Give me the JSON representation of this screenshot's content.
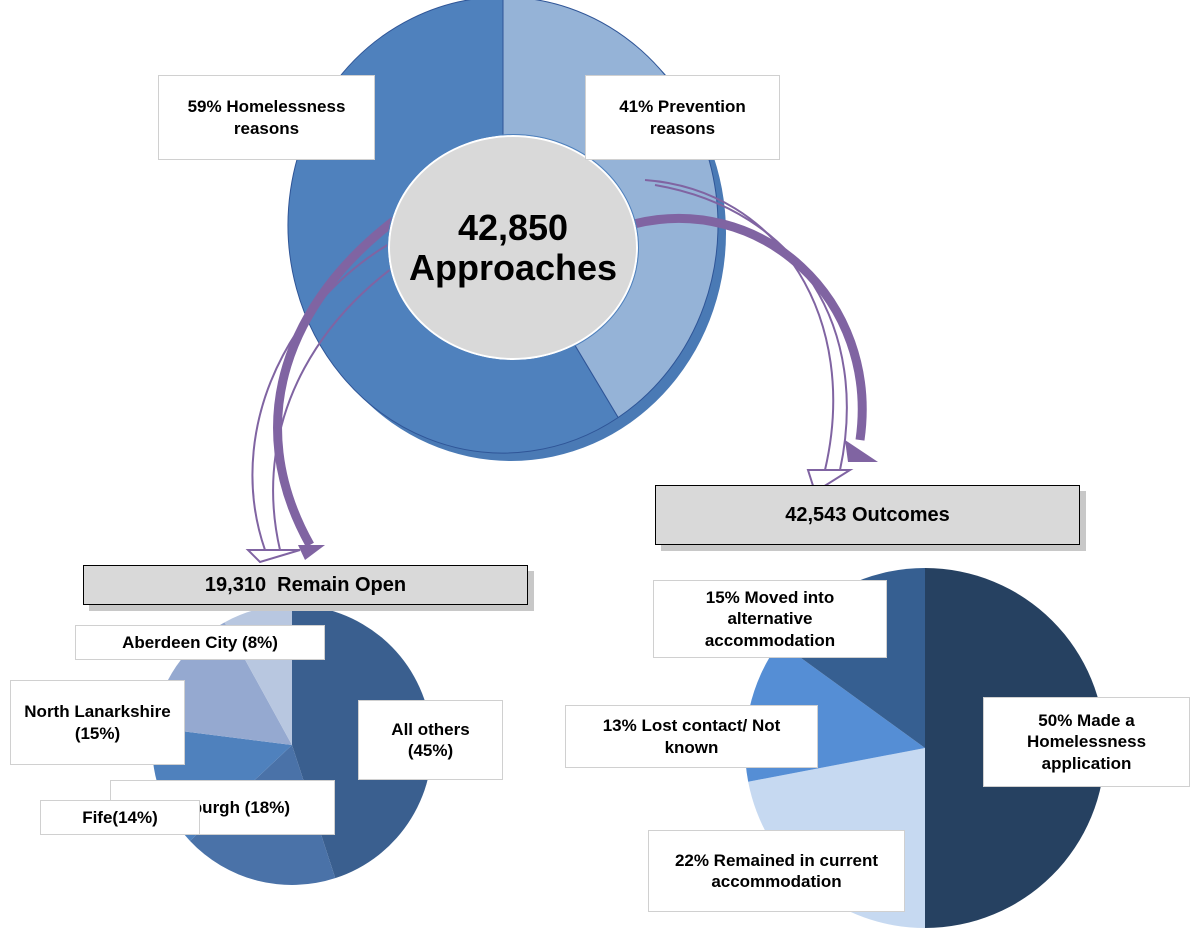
{
  "chart_data": [
    {
      "type": "pie",
      "donut": true,
      "total_label": "42,850 Approaches",
      "values": [
        59,
        41
      ],
      "value_labels": [
        "59% Homelessness reasons",
        "41% Prevention reasons"
      ],
      "colors": [
        "#4f81bd",
        "#95b3d7"
      ]
    },
    {
      "type": "pie",
      "title": "19,310  Remain Open",
      "values": [
        45,
        18,
        14,
        15,
        8
      ],
      "value_labels": [
        "All others (45%)",
        "Edinburgh (18%)",
        "Fife(14%)",
        "North Lanarkshire (15%)",
        "Aberdeen City (8%)"
      ],
      "colors": [
        "#3a5f8f",
        "#4a72a8",
        "#4f81bd",
        "#95a9d0",
        "#b8c7e0"
      ]
    },
    {
      "type": "pie",
      "title": "42,543 Outcomes",
      "values": [
        50,
        22,
        13,
        15
      ],
      "value_labels": [
        "50% Made a Homelessness application",
        "22% Remained in current accommodation",
        "13% Lost contact/ Not known",
        "15% Moved into alternative accommodation"
      ],
      "colors": [
        "#264161",
        "#c6d9f1",
        "#558ed5",
        "#365f91"
      ]
    }
  ]
}
